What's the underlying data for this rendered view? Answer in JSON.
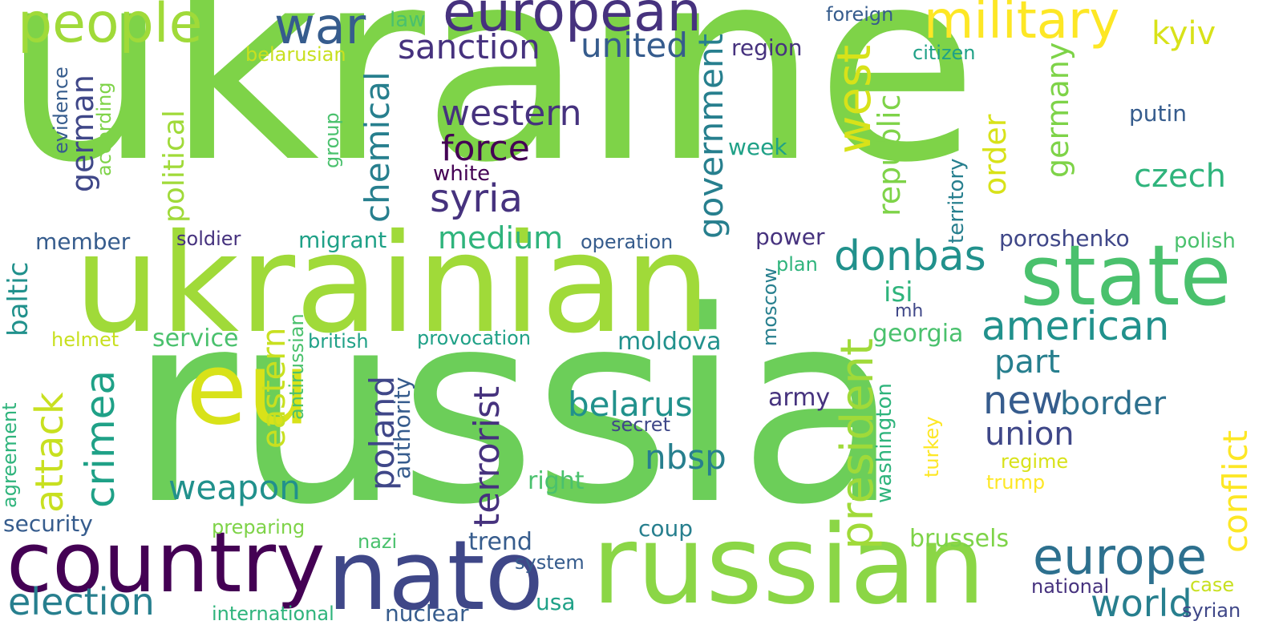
{
  "words": {
    "ukraine": "ukraine",
    "russia": "russia",
    "ukrainian": "ukrainian",
    "russian": "russian",
    "country": "country",
    "nato": "nato",
    "state": "state",
    "european": "european",
    "people": "people",
    "war": "war",
    "military": "military",
    "eu": "eu",
    "american": "american",
    "europe": "europe",
    "donbas": "donbas",
    "west": "west",
    "president": "president",
    "crimea": "crimea",
    "attack": "attack",
    "syria": "syria",
    "chemical": "chemical",
    "government": "government",
    "sanction": "sanction",
    "united": "united",
    "western": "western",
    "force": "force",
    "terrorist": "terrorist",
    "election": "election",
    "world": "world",
    "kyiv": "kyiv",
    "new": "new",
    "union": "union",
    "belarus": "belarus",
    "weapon": "weapon",
    "nbsp": "nbsp",
    "czech": "czech",
    "border": "border",
    "poland": "poland",
    "eastern": "eastern",
    "medium": "medium",
    "political": "political",
    "german": "german",
    "republic": "republic",
    "germany": "germany",
    "conflict": "conflict",
    "baltic": "baltic",
    "part": "part",
    "order": "order",
    "georgia": "georgia",
    "poroshenko": "poroshenko",
    "security": "security",
    "region": "region",
    "isi": "isi",
    "moldova": "moldova",
    "power": "power",
    "migrant": "migrant",
    "service": "service",
    "trend": "trend",
    "brussels": "brussels",
    "putin": "putin",
    "week": "week",
    "member": "member",
    "right": "right",
    "army": "army",
    "usa": "usa",
    "coup": "coup",
    "nuclear": "nuclear",
    "authority": "authority",
    "territory": "territory",
    "washington": "washington",
    "operation": "operation",
    "soldier": "soldier",
    "foreign": "foreign",
    "citizen": "citizen",
    "polish": "polish",
    "plan": "plan",
    "moscow": "moscow",
    "mh": "mh",
    "white": "white",
    "belarusian": "belarusian",
    "law": "law",
    "evidence": "evidence",
    "according": "according",
    "group": "group",
    "helmet": "helmet",
    "british": "british",
    "provocation": "provocation",
    "antirussian": "antirussian",
    "secret": "secret",
    "preparing": "preparing",
    "nazi": "nazi",
    "system": "system",
    "international": "international",
    "national": "national",
    "case": "case",
    "syrian": "syrian",
    "regime": "regime",
    "trump": "trump",
    "turkey": "turkey",
    "agreement": "agreement"
  },
  "colors": {
    "bright_green": "#7ed348",
    "lime": "#a0da39",
    "mid_green": "#4ac16d",
    "teal_green": "#2fb47c",
    "teal": "#1fa187",
    "cyan": "#21918c",
    "steel": "#277f8e",
    "blue": "#365c8d",
    "indigo": "#3f4788",
    "purple": "#46327e",
    "dark_purple": "#440154",
    "yellow": "#fde725",
    "yellow_green": "#c8e020"
  }
}
